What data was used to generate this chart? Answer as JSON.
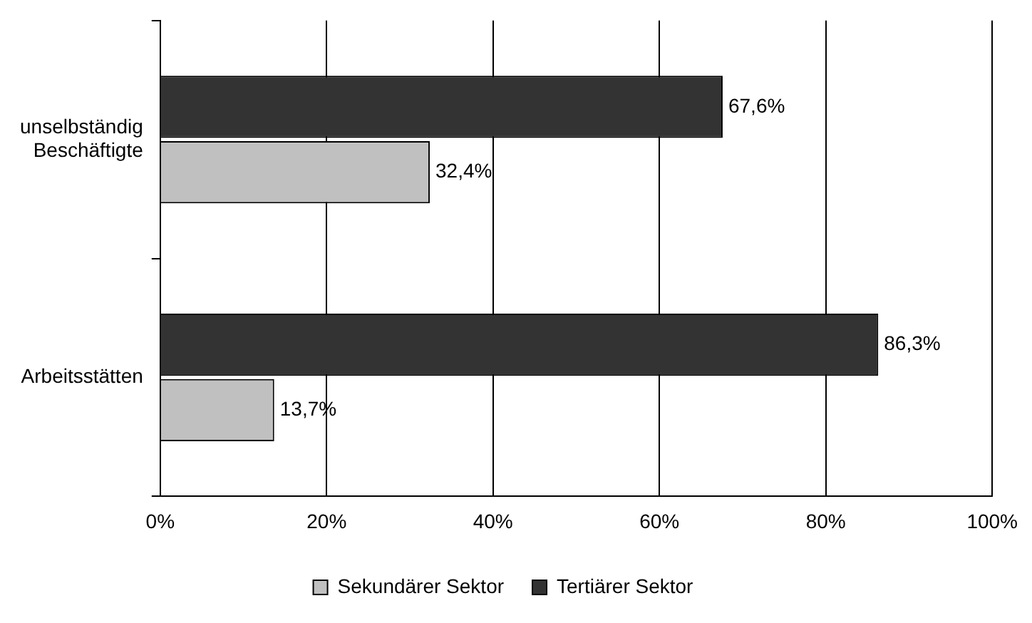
{
  "chart_data": {
    "type": "bar",
    "orientation": "horizontal",
    "categories": [
      "unselbständig Beschäftigte",
      "Arbeitsstätten"
    ],
    "series": [
      {
        "name": "Sekundärer Sektor",
        "color": "#c0c0c0",
        "values": [
          32.4,
          13.7
        ],
        "value_labels": [
          "32,4%",
          "13,7%"
        ]
      },
      {
        "name": "Tertiärer Sektor",
        "color": "#333333",
        "values": [
          67.6,
          86.3
        ],
        "value_labels": [
          "67,6%",
          "86,3%"
        ]
      }
    ],
    "xlim": [
      0,
      100
    ],
    "xticks": [
      {
        "value": 0,
        "label": "0%"
      },
      {
        "value": 20,
        "label": "20%"
      },
      {
        "value": 40,
        "label": "40%"
      },
      {
        "value": 60,
        "label": "60%"
      },
      {
        "value": 80,
        "label": "80%"
      },
      {
        "value": 100,
        "label": "100%"
      }
    ],
    "grid": "x",
    "legend": "bottom"
  }
}
